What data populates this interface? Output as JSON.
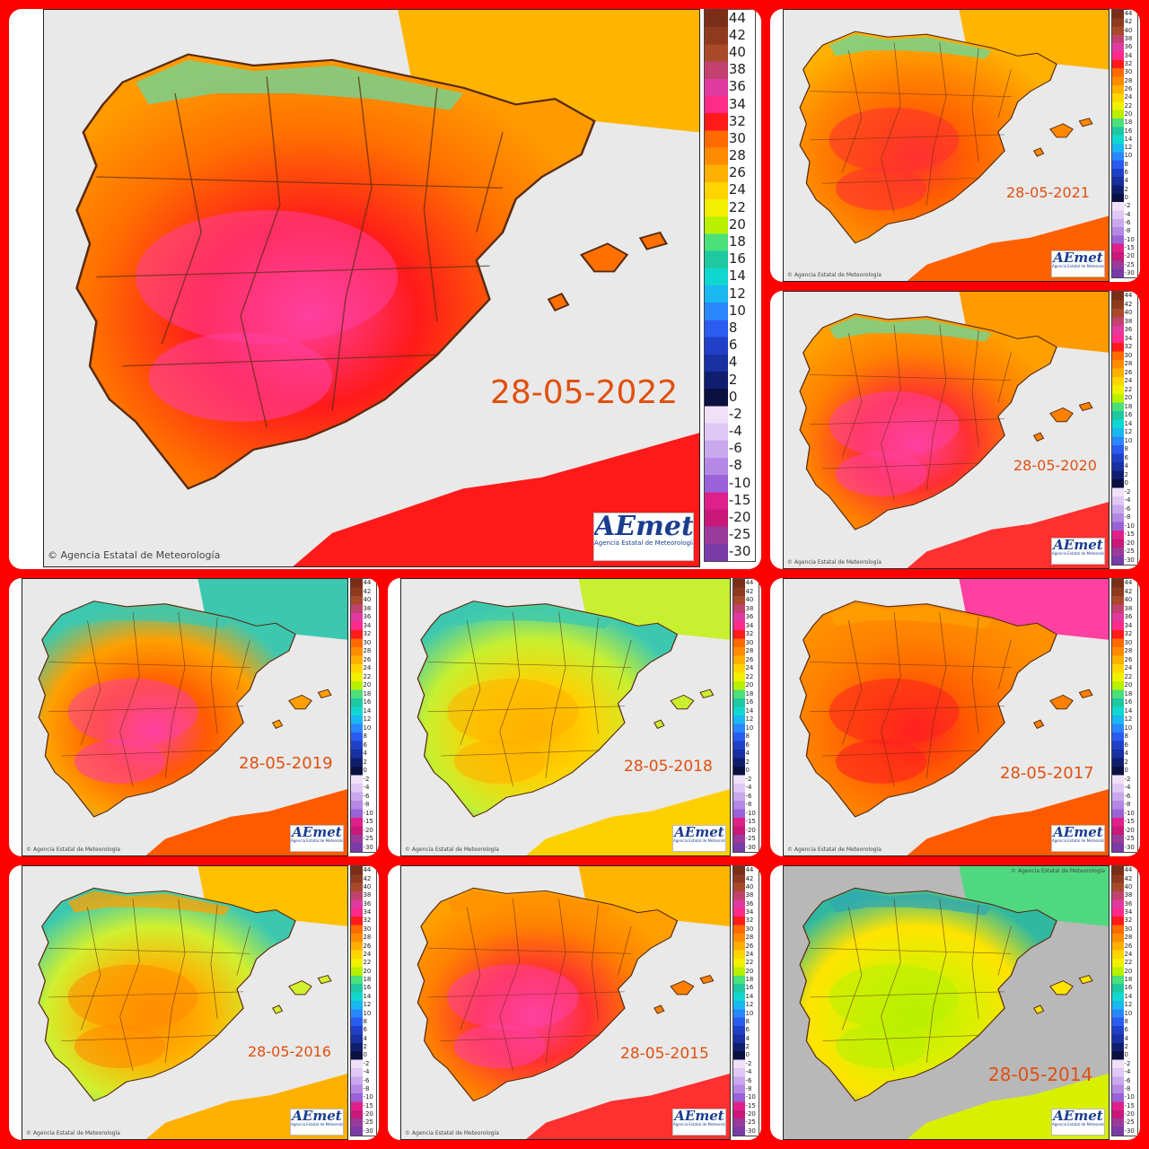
{
  "collage": {
    "credit": "© Agencia Estatal de Meteorología",
    "logo": {
      "word": "AEmet",
      "sub": "Agencia Estatal de Meteorología"
    },
    "legend_ticks": [
      "44",
      "42",
      "40",
      "38",
      "36",
      "34",
      "32",
      "30",
      "28",
      "26",
      "24",
      "22",
      "20",
      "18",
      "16",
      "14",
      "12",
      "10",
      "8",
      "6",
      "4",
      "2",
      "0",
      "-2",
      "-4",
      "-6",
      "-8",
      "-10",
      "-15",
      "-20",
      "-25",
      "-30"
    ],
    "legend_colors": [
      "#7a2e18",
      "#8f3a1e",
      "#a84a2a",
      "#c2416f",
      "#e03aa0",
      "#ff2a8a",
      "#ff1a1a",
      "#ff6a00",
      "#ff8c00",
      "#ffb000",
      "#ffd500",
      "#f0f000",
      "#b8f000",
      "#4be07a",
      "#1ec8a0",
      "#10d8d0",
      "#1ab8f0",
      "#2a88ff",
      "#2a5cf0",
      "#2040c8",
      "#1830a0",
      "#101e70",
      "#0a1040",
      "#f0e0f8",
      "#e0c8f4",
      "#caa8ee",
      "#b488e4",
      "#9a62d8",
      "#e0208a",
      "#c8187a",
      "#9a3a9a",
      "#7a3aa8"
    ],
    "land_colors": {
      "north": "#ffb000",
      "west": "#ff6a00",
      "south": "#ff1a1a"
    },
    "panels": [
      {
        "date": "28-05-2022",
        "colors": {
          "north": "#ff9a00",
          "center": "#ff7000",
          "hot": "#ff1a1a",
          "hottest": "#ff40a0",
          "coast": "#66d9a0",
          "france": "#ffb400"
        }
      },
      {
        "date": "28-05-2021",
        "colors": {
          "north": "#ffb000",
          "center": "#ff8800",
          "hot": "#ff6000",
          "hottest": "#ff3030",
          "coast": "#66d9a0",
          "france": "#ffb400"
        }
      },
      {
        "date": "28-05-2020",
        "colors": {
          "north": "#ffa000",
          "center": "#ff8000",
          "hot": "#ff3030",
          "hottest": "#ff40a0",
          "coast": "#66d9a0",
          "france": "#ff9a00"
        }
      },
      {
        "date": "28-05-2019",
        "colors": {
          "north": "#3cc8b0",
          "center": "#ffa000",
          "hot": "#ff5a00",
          "hottest": "#ff40a0",
          "coast": "#3cc8b0",
          "france": "#3cc8b0"
        }
      },
      {
        "date": "28-05-2018",
        "colors": {
          "north": "#3cc8b0",
          "center": "#c8f030",
          "hot": "#ffd000",
          "hottest": "#ffb000",
          "coast": "#3cc8b0",
          "france": "#c8f030"
        }
      },
      {
        "date": "28-05-2017",
        "colors": {
          "north": "#ff9000",
          "center": "#ff8000",
          "hot": "#ff5a00",
          "hottest": "#ff2020",
          "coast": "#ffa000",
          "france": "#ff40a0"
        }
      },
      {
        "date": "28-05-2016",
        "colors": {
          "north": "#3cc8b0",
          "center": "#d0f030",
          "hot": "#ffb000",
          "hottest": "#ff8c00",
          "coast": "#ffa000",
          "france": "#ffc000"
        }
      },
      {
        "date": "28-05-2015",
        "colors": {
          "north": "#ffa000",
          "center": "#ff8000",
          "hot": "#ff3030",
          "hottest": "#ff40a0",
          "coast": "#ff9000",
          "france": "#ffb400"
        }
      },
      {
        "date": "28-05-2014",
        "colors": {
          "north": "#30b8a0",
          "center": "#ffe400",
          "hot": "#d8f000",
          "hottest": "#b8f000",
          "coast": "#30a8b0",
          "france": "#50d880"
        }
      }
    ]
  }
}
